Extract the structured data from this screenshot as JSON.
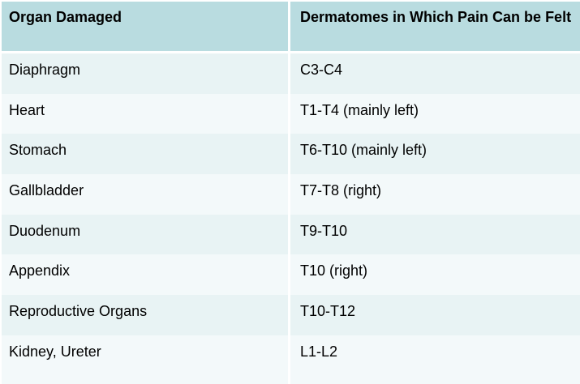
{
  "table": {
    "headers": [
      "Organ Damaged",
      "Dermatomes in Which Pain Can be Felt"
    ],
    "rows": [
      {
        "organ": "Diaphragm",
        "dermatomes": "C3-C4"
      },
      {
        "organ": "Heart",
        "dermatomes": "T1-T4 (mainly left)"
      },
      {
        "organ": "Stomach",
        "dermatomes": "T6-T10 (mainly left)"
      },
      {
        "organ": "Gallbladder",
        "dermatomes": "T7-T8 (right)"
      },
      {
        "organ": "Duodenum",
        "dermatomes": "T9-T10"
      },
      {
        "organ": "Appendix",
        "dermatomes": "T10 (right)"
      },
      {
        "organ": "Reproductive Organs",
        "dermatomes": "T10-T12"
      },
      {
        "organ": "Kidney, Ureter",
        "dermatomes": "L1-L2"
      }
    ],
    "colors": {
      "header_bg": "#b9dce0",
      "row_odd_bg": "#e8f3f4",
      "row_even_bg": "#f3f9fa",
      "divider": "#ffffff",
      "text": "#000000",
      "page_bg": "#ffffff"
    }
  },
  "chart_data": {
    "type": "table",
    "title": "",
    "columns": [
      "Organ Damaged",
      "Dermatomes in Which Pain Can be Felt"
    ],
    "rows": [
      [
        "Diaphragm",
        "C3-C4"
      ],
      [
        "Heart",
        "T1-T4 (mainly left)"
      ],
      [
        "Stomach",
        "T6-T10 (mainly left)"
      ],
      [
        "Gallbladder",
        "T7-T8 (right)"
      ],
      [
        "Duodenum",
        "T9-T10"
      ],
      [
        "Appendix",
        "T10 (right)"
      ],
      [
        "Reproductive Organs",
        "T10-T12"
      ],
      [
        "Kidney, Ureter",
        "L1-L2"
      ]
    ],
    "layout_hints": {
      "header_style": "bold on light teal",
      "body_style": "alternating pale teal rows, white column divider, no outer border"
    }
  }
}
